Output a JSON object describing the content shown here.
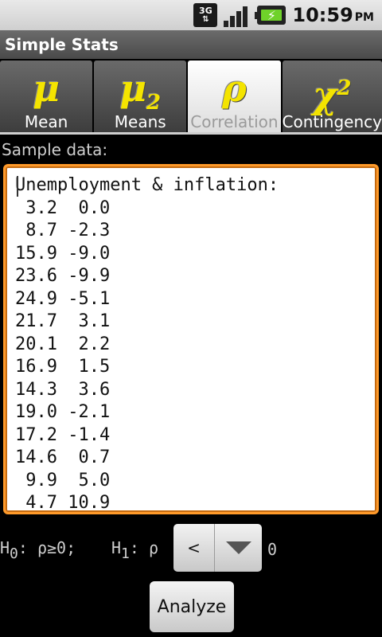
{
  "status_bar": {
    "network": "3G",
    "time": "10:59",
    "ampm": "PM"
  },
  "app": {
    "title": "Simple Stats"
  },
  "tabs": [
    {
      "symbol": "μ",
      "sub": "",
      "sup": "",
      "label": "Mean",
      "active": false
    },
    {
      "symbol": "μ",
      "sub": "2",
      "sup": "",
      "label": "Means",
      "active": false
    },
    {
      "symbol": "ρ",
      "sub": "",
      "sup": "",
      "label": "Correlation",
      "active": true
    },
    {
      "symbol": "χ",
      "sub": "",
      "sup": "2",
      "label": "Contingency",
      "active": false
    }
  ],
  "sample": {
    "label": "Sample data:",
    "text": "Unemployment & inflation:\n 3.2  0.0\n 8.7 -2.3\n15.9 -9.0\n23.6 -9.9\n24.9 -5.1\n21.7  3.1\n20.1  2.2\n16.9  1.5\n14.3  3.6\n19.0 -2.1\n17.2 -1.4\n14.6  0.7\n 9.9  5.0\n 4.7 10.9"
  },
  "hypothesis": {
    "h0_label": "H",
    "h0_sub": "0",
    "h0_text": ": ρ≥0;",
    "h1_label": "H",
    "h1_sub": "1",
    "h1_text": ": ρ",
    "operator": "<",
    "value": "0"
  },
  "analyze_button": "Analyze",
  "colors": {
    "accent_border": "#ff9a2a",
    "symbol_yellow": "#f4e400"
  }
}
